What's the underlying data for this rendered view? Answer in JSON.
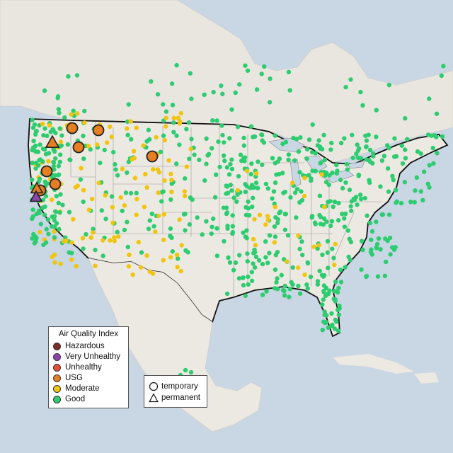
{
  "legend_aqi": {
    "title": "Air Quality Index",
    "items": [
      {
        "label": "Hazardous",
        "color": "#7b2d26"
      },
      {
        "label": "Very Unhealthy",
        "color": "#8e44ad"
      },
      {
        "label": "Unhealthy",
        "color": "#e74c3c"
      },
      {
        "label": "USG",
        "color": "#e67e22"
      },
      {
        "label": "Moderate",
        "color": "#f1c40f"
      },
      {
        "label": "Good",
        "color": "#2ecc71"
      }
    ]
  },
  "legend_type": {
    "items": [
      {
        "label": "temporary",
        "shape": "circle"
      },
      {
        "label": "permanent",
        "shape": "triangle"
      }
    ]
  },
  "colors": {
    "water": "#c9d6e3",
    "land": "#e8e4dc",
    "border": "#111111",
    "state_line": "#9a9a9a",
    "no_data": "#c8c8c8"
  }
}
